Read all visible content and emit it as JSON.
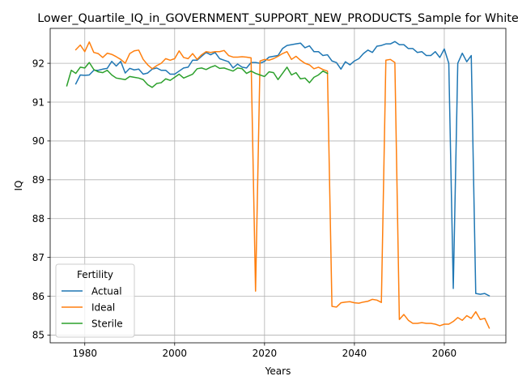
{
  "chart_data": {
    "type": "line",
    "title": "Lower_Quartile_IQ_in_GOVERNMENT_SUPPORT_NEW_PRODUCTS_Sample for White",
    "xlabel": "Years",
    "ylabel": "IQ",
    "xlim": [
      1972.3,
      2073.7
    ],
    "ylim": [
      84.8,
      92.9
    ],
    "xticks": [
      1980,
      2000,
      2020,
      2040,
      2060
    ],
    "yticks": [
      85,
      86,
      87,
      88,
      89,
      90,
      91,
      92
    ],
    "grid": true,
    "legend": {
      "title": "Fertility",
      "placement": "lower-left"
    },
    "series": [
      {
        "name": "Actual",
        "color": "#1f77b4",
        "points": [
          [
            1978,
            91.47
          ],
          [
            1979,
            91.7
          ],
          [
            1980,
            91.69
          ],
          [
            1981,
            91.7
          ],
          [
            1982,
            91.82
          ],
          [
            1983,
            91.82
          ],
          [
            1984,
            91.85
          ],
          [
            1985,
            91.87
          ],
          [
            1986,
            92.05
          ],
          [
            1987,
            91.93
          ],
          [
            1988,
            92.05
          ],
          [
            1989,
            91.75
          ],
          [
            1990,
            91.87
          ],
          [
            1991,
            91.83
          ],
          [
            1992,
            91.85
          ],
          [
            1993,
            91.72
          ],
          [
            1994,
            91.75
          ],
          [
            1995,
            91.85
          ],
          [
            1996,
            91.88
          ],
          [
            1997,
            91.82
          ],
          [
            1998,
            91.82
          ],
          [
            1999,
            91.72
          ],
          [
            2000,
            91.72
          ],
          [
            2001,
            91.8
          ],
          [
            2002,
            91.88
          ],
          [
            2003,
            91.9
          ],
          [
            2004,
            92.08
          ],
          [
            2005,
            92.08
          ],
          [
            2006,
            92.18
          ],
          [
            2007,
            92.28
          ],
          [
            2008,
            92.22
          ],
          [
            2009,
            92.28
          ],
          [
            2010,
            92.12
          ],
          [
            2011,
            92.08
          ],
          [
            2012,
            92.04
          ],
          [
            2013,
            91.88
          ],
          [
            2014,
            91.98
          ],
          [
            2015,
            91.9
          ],
          [
            2016,
            91.88
          ],
          [
            2017,
            92.02
          ],
          [
            2018,
            92.02
          ],
          [
            2019,
            92.0
          ],
          [
            2020,
            92.05
          ],
          [
            2021,
            92.16
          ],
          [
            2022,
            92.18
          ],
          [
            2023,
            92.2
          ],
          [
            2024,
            92.38
          ],
          [
            2025,
            92.46
          ],
          [
            2026,
            92.48
          ],
          [
            2027,
            92.5
          ],
          [
            2028,
            92.52
          ],
          [
            2029,
            92.4
          ],
          [
            2030,
            92.45
          ],
          [
            2031,
            92.3
          ],
          [
            2032,
            92.3
          ],
          [
            2033,
            92.2
          ],
          [
            2034,
            92.22
          ],
          [
            2035,
            92.06
          ],
          [
            2036,
            92.02
          ],
          [
            2037,
            91.85
          ],
          [
            2038,
            92.04
          ],
          [
            2039,
            91.96
          ],
          [
            2040,
            92.06
          ],
          [
            2041,
            92.12
          ],
          [
            2042,
            92.25
          ],
          [
            2043,
            92.34
          ],
          [
            2044,
            92.28
          ],
          [
            2045,
            92.44
          ],
          [
            2046,
            92.46
          ],
          [
            2047,
            92.5
          ],
          [
            2048,
            92.5
          ],
          [
            2049,
            92.56
          ],
          [
            2050,
            92.48
          ],
          [
            2051,
            92.48
          ],
          [
            2052,
            92.38
          ],
          [
            2053,
            92.38
          ],
          [
            2054,
            92.28
          ],
          [
            2055,
            92.3
          ],
          [
            2056,
            92.2
          ],
          [
            2057,
            92.2
          ],
          [
            2058,
            92.3
          ],
          [
            2059,
            92.15
          ],
          [
            2060,
            92.37
          ],
          [
            2061,
            92.0
          ],
          [
            2062,
            86.2
          ],
          [
            2063,
            92.0
          ],
          [
            2064,
            92.26
          ],
          [
            2065,
            92.04
          ],
          [
            2066,
            92.2
          ],
          [
            2067,
            86.07
          ],
          [
            2068,
            86.05
          ],
          [
            2069,
            86.07
          ],
          [
            2070,
            86.01
          ]
        ]
      },
      {
        "name": "Ideal",
        "color": "#ff7f0e",
        "points": [
          [
            1978,
            92.35
          ],
          [
            1979,
            92.47
          ],
          [
            1980,
            92.3
          ],
          [
            1981,
            92.55
          ],
          [
            1982,
            92.28
          ],
          [
            1983,
            92.25
          ],
          [
            1984,
            92.15
          ],
          [
            1985,
            92.26
          ],
          [
            1986,
            92.23
          ],
          [
            1987,
            92.17
          ],
          [
            1988,
            92.1
          ],
          [
            1989,
            92.0
          ],
          [
            1990,
            92.25
          ],
          [
            1991,
            92.32
          ],
          [
            1992,
            92.34
          ],
          [
            1993,
            92.1
          ],
          [
            1994,
            91.96
          ],
          [
            1995,
            91.86
          ],
          [
            1996,
            91.94
          ],
          [
            1997,
            92.0
          ],
          [
            1998,
            92.12
          ],
          [
            1999,
            92.08
          ],
          [
            2000,
            92.12
          ],
          [
            2001,
            92.32
          ],
          [
            2002,
            92.15
          ],
          [
            2003,
            92.12
          ],
          [
            2004,
            92.25
          ],
          [
            2005,
            92.1
          ],
          [
            2006,
            92.22
          ],
          [
            2007,
            92.3
          ],
          [
            2008,
            92.28
          ],
          [
            2009,
            92.3
          ],
          [
            2010,
            92.3
          ],
          [
            2011,
            92.33
          ],
          [
            2012,
            92.2
          ],
          [
            2013,
            92.16
          ],
          [
            2014,
            92.16
          ],
          [
            2015,
            92.17
          ],
          [
            2016,
            92.16
          ],
          [
            2017,
            92.14
          ],
          [
            2018,
            86.13
          ],
          [
            2019,
            92.06
          ],
          [
            2020,
            92.1
          ],
          [
            2021,
            92.08
          ],
          [
            2022,
            92.12
          ],
          [
            2023,
            92.18
          ],
          [
            2024,
            92.25
          ],
          [
            2025,
            92.3
          ],
          [
            2026,
            92.1
          ],
          [
            2027,
            92.18
          ],
          [
            2028,
            92.08
          ],
          [
            2029,
            92.0
          ],
          [
            2030,
            91.96
          ],
          [
            2031,
            91.86
          ],
          [
            2032,
            91.9
          ],
          [
            2033,
            91.84
          ],
          [
            2034,
            91.8
          ],
          [
            2035,
            85.74
          ],
          [
            2036,
            85.72
          ],
          [
            2037,
            85.83
          ],
          [
            2038,
            85.85
          ],
          [
            2039,
            85.86
          ],
          [
            2040,
            85.83
          ],
          [
            2041,
            85.82
          ],
          [
            2042,
            85.85
          ],
          [
            2043,
            85.87
          ],
          [
            2044,
            85.92
          ],
          [
            2045,
            85.9
          ],
          [
            2046,
            85.84
          ],
          [
            2047,
            92.08
          ],
          [
            2048,
            92.1
          ],
          [
            2049,
            92.02
          ],
          [
            2050,
            85.4
          ],
          [
            2051,
            85.53
          ],
          [
            2052,
            85.38
          ],
          [
            2053,
            85.3
          ],
          [
            2054,
            85.3
          ],
          [
            2055,
            85.32
          ],
          [
            2056,
            85.3
          ],
          [
            2057,
            85.3
          ],
          [
            2058,
            85.28
          ],
          [
            2059,
            85.24
          ],
          [
            2060,
            85.28
          ],
          [
            2061,
            85.28
          ],
          [
            2062,
            85.35
          ],
          [
            2063,
            85.45
          ],
          [
            2064,
            85.38
          ],
          [
            2065,
            85.5
          ],
          [
            2066,
            85.43
          ],
          [
            2067,
            85.6
          ],
          [
            2068,
            85.4
          ],
          [
            2069,
            85.43
          ],
          [
            2070,
            85.18
          ]
        ]
      },
      {
        "name": "Sterile",
        "color": "#2ca02c",
        "points": [
          [
            1976,
            91.42
          ],
          [
            1977,
            91.82
          ],
          [
            1978,
            91.74
          ],
          [
            1979,
            91.9
          ],
          [
            1980,
            91.88
          ],
          [
            1981,
            92.02
          ],
          [
            1982,
            91.84
          ],
          [
            1983,
            91.78
          ],
          [
            1984,
            91.76
          ],
          [
            1985,
            91.82
          ],
          [
            1986,
            91.7
          ],
          [
            1987,
            91.62
          ],
          [
            1988,
            91.6
          ],
          [
            1989,
            91.58
          ],
          [
            1990,
            91.66
          ],
          [
            1991,
            91.64
          ],
          [
            1992,
            91.62
          ],
          [
            1993,
            91.58
          ],
          [
            1994,
            91.45
          ],
          [
            1995,
            91.38
          ],
          [
            1996,
            91.48
          ],
          [
            1997,
            91.5
          ],
          [
            1998,
            91.6
          ],
          [
            1999,
            91.56
          ],
          [
            2000,
            91.64
          ],
          [
            2001,
            91.72
          ],
          [
            2002,
            91.62
          ],
          [
            2003,
            91.67
          ],
          [
            2004,
            91.72
          ],
          [
            2005,
            91.86
          ],
          [
            2006,
            91.88
          ],
          [
            2007,
            91.84
          ],
          [
            2008,
            91.9
          ],
          [
            2009,
            91.94
          ],
          [
            2010,
            91.87
          ],
          [
            2011,
            91.88
          ],
          [
            2012,
            91.84
          ],
          [
            2013,
            91.8
          ],
          [
            2014,
            91.88
          ],
          [
            2015,
            91.86
          ],
          [
            2016,
            91.74
          ],
          [
            2017,
            91.8
          ],
          [
            2018,
            91.74
          ],
          [
            2019,
            91.7
          ],
          [
            2020,
            91.66
          ],
          [
            2021,
            91.78
          ],
          [
            2022,
            91.76
          ],
          [
            2023,
            91.58
          ],
          [
            2024,
            91.74
          ],
          [
            2025,
            91.9
          ],
          [
            2026,
            91.7
          ],
          [
            2027,
            91.76
          ],
          [
            2028,
            91.6
          ],
          [
            2029,
            91.62
          ],
          [
            2030,
            91.5
          ],
          [
            2031,
            91.64
          ],
          [
            2032,
            91.7
          ],
          [
            2033,
            91.8
          ],
          [
            2034,
            91.74
          ]
        ]
      }
    ]
  }
}
